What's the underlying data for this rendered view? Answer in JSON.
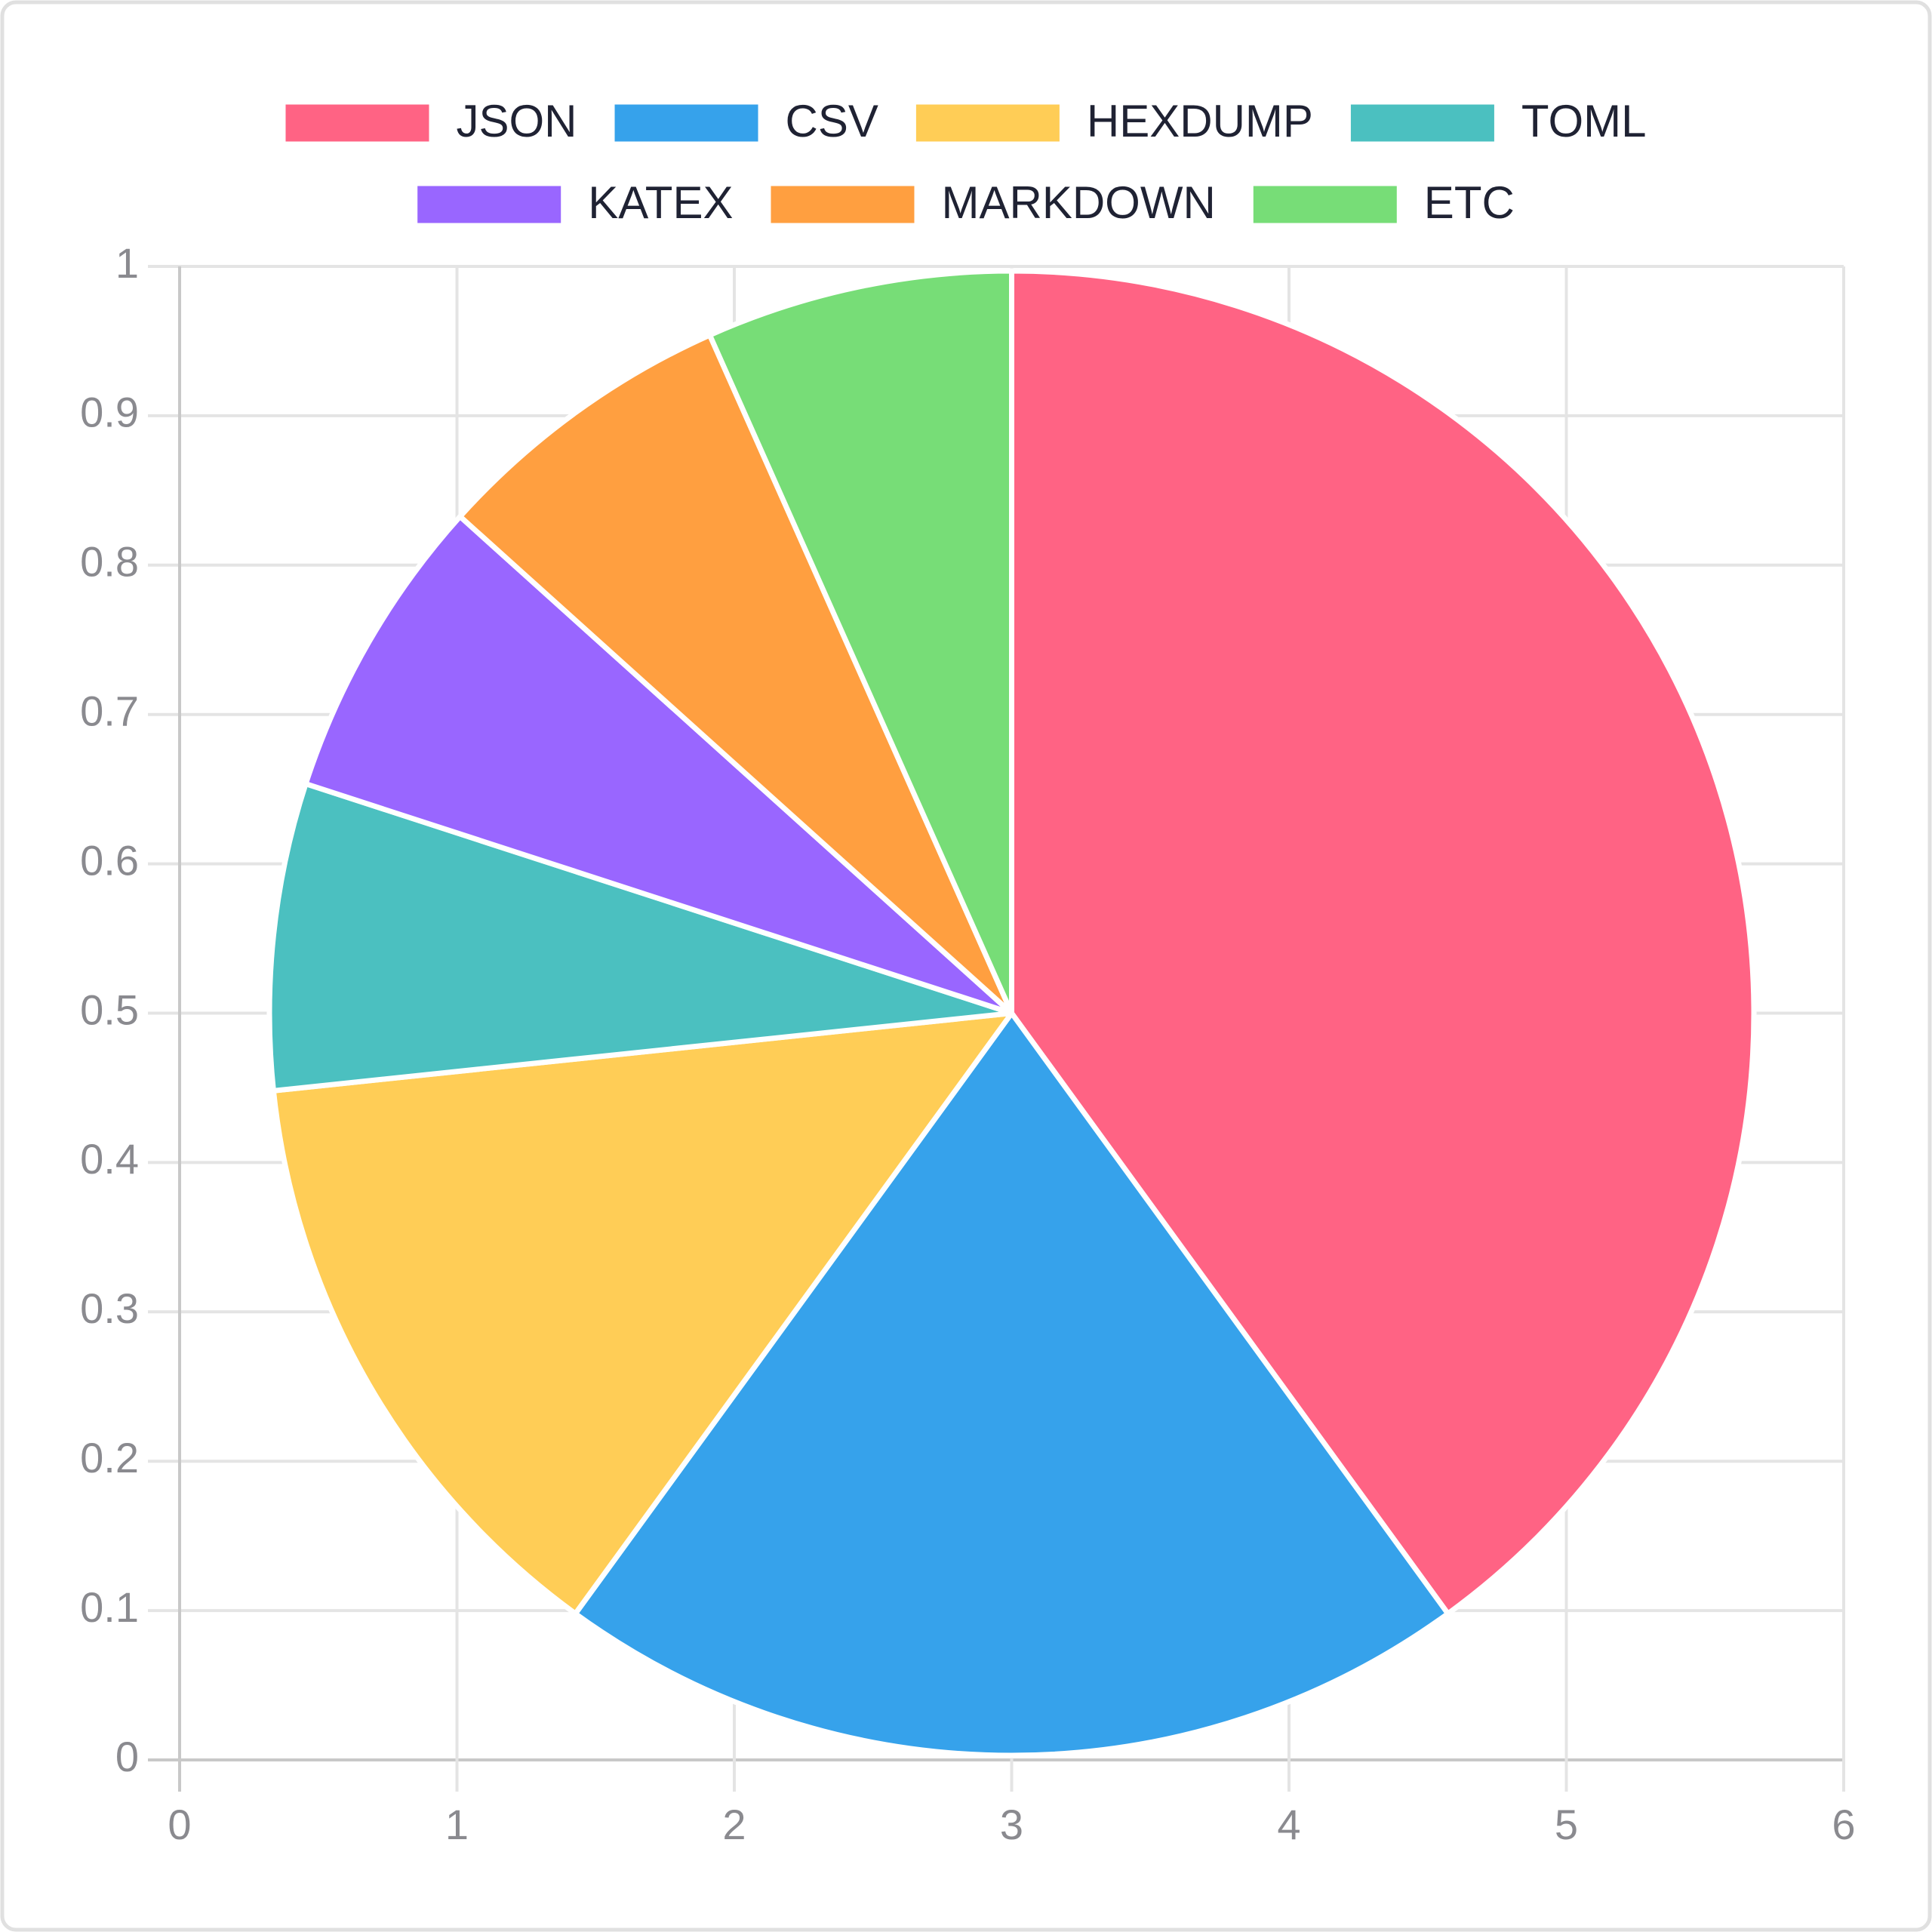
{
  "chart_data": {
    "type": "pie",
    "categories": [
      "JSON",
      "CSV",
      "HEXDUMP",
      "TOML",
      "KATEX",
      "MARKDOWN",
      "ETC"
    ],
    "values": [
      6,
      3,
      2,
      1,
      1,
      1,
      1
    ],
    "colors": [
      "#ff6384",
      "#36a2eb",
      "#ffcd56",
      "#4bc0c0",
      "#9966ff",
      "#ff9f40",
      "#77dd77"
    ],
    "xlim": [
      0,
      6
    ],
    "xticks": [
      0,
      1,
      2,
      3,
      4,
      5,
      6
    ],
    "ylim": [
      0,
      1
    ],
    "yticks": [
      0,
      0.1,
      0.2,
      0.3,
      0.4,
      0.5,
      0.6,
      0.7,
      0.8,
      0.9,
      1
    ],
    "grid": true,
    "legend": "top"
  }
}
